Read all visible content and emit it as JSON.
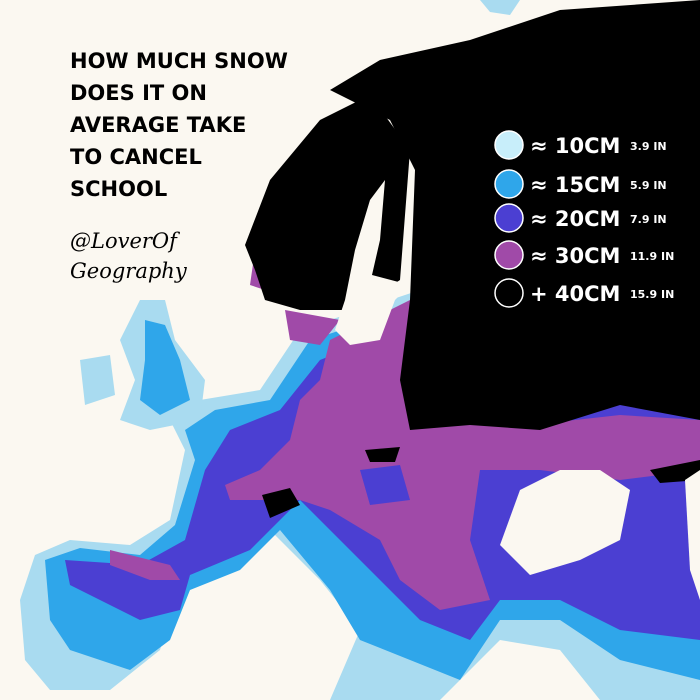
{
  "title": [
    "HOW MUCH SNOW",
    "DOES IT ON",
    "AVERAGE TAKE",
    "TO CANCEL",
    "SCHOOL"
  ],
  "credit": [
    "@LoverOf",
    "Geography"
  ],
  "legend": [
    {
      "label": "≈ 10CM",
      "sub": "3.9 IN",
      "color": "#c8eefa"
    },
    {
      "label": "≈ 15CM",
      "sub": "5.9 IN",
      "color": "#2fa6ea"
    },
    {
      "label": "≈ 20CM",
      "sub": "7.9 IN",
      "color": "#4b3fd2"
    },
    {
      "label": "≈ 30CM",
      "sub": "11.9 IN",
      "color": "#a04aa8"
    },
    {
      "label": "+ 40CM",
      "sub": "15.9 IN",
      "color": "#000000"
    }
  ]
}
